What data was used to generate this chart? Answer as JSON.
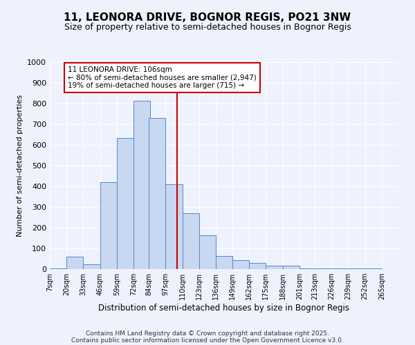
{
  "title1": "11, LEONORA DRIVE, BOGNOR REGIS, PO21 3NW",
  "title2": "Size of property relative to semi-detached houses in Bognor Regis",
  "xlabel": "Distribution of semi-detached houses by size in Bognor Regis",
  "ylabel": "Number of semi-detached properties",
  "bin_edges": [
    7,
    20,
    33,
    46,
    59,
    72,
    84,
    97,
    110,
    123,
    136,
    149,
    162,
    175,
    188,
    201,
    213,
    226,
    239,
    252,
    265,
    278
  ],
  "bin_labels": [
    "7sqm",
    "20sqm",
    "33sqm",
    "46sqm",
    "59sqm",
    "72sqm",
    "84sqm",
    "97sqm",
    "110sqm",
    "123sqm",
    "136sqm",
    "149sqm",
    "162sqm",
    "175sqm",
    "188sqm",
    "201sqm",
    "213sqm",
    "226sqm",
    "239sqm",
    "252sqm",
    "265sqm"
  ],
  "counts": [
    5,
    60,
    25,
    420,
    635,
    815,
    730,
    410,
    270,
    165,
    65,
    42,
    30,
    18,
    18,
    5,
    5,
    2,
    2,
    2,
    1
  ],
  "bar_facecolor": "#c8d8f0",
  "bar_edgecolor": "#5588cc",
  "vline_x": 106,
  "vline_color": "#cc0000",
  "annotation_title": "11 LEONORA DRIVE: 106sqm",
  "annotation_line1": "← 80% of semi-detached houses are smaller (2,947)",
  "annotation_line2": "19% of semi-detached houses are larger (715) →",
  "annotation_box_edgecolor": "#cc0000",
  "annotation_box_facecolor": "#ffffff",
  "ylim": [
    0,
    1000
  ],
  "yticks": [
    0,
    100,
    200,
    300,
    400,
    500,
    600,
    700,
    800,
    900,
    1000
  ],
  "footer_line1": "Contains HM Land Registry data © Crown copyright and database right 2025.",
  "footer_line2": "Contains public sector information licensed under the Open Government Licence v3.0.",
  "bg_color": "#eef2fc",
  "grid_color": "#ffffff",
  "title1_fontsize": 11,
  "title2_fontsize": 9
}
